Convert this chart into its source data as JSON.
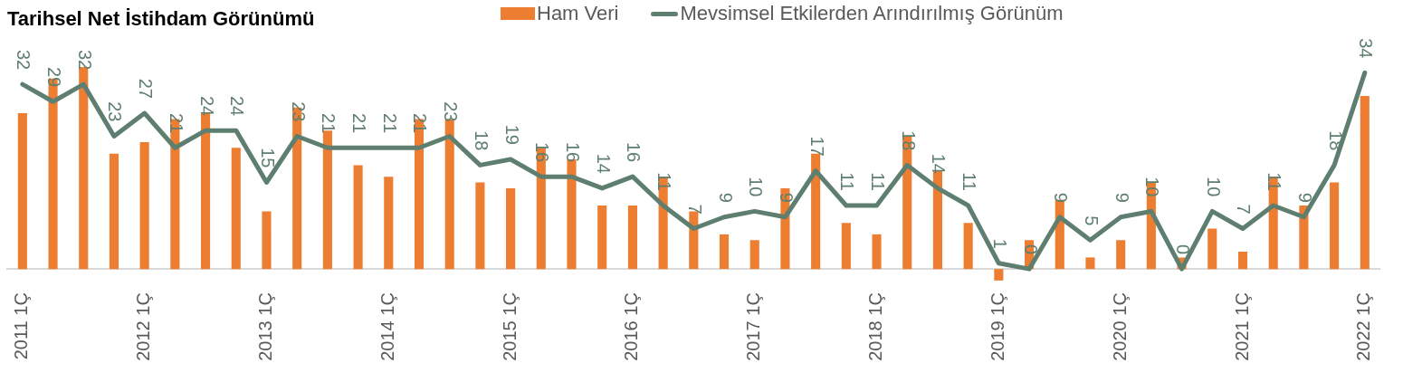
{
  "chart_data": {
    "type": "bar",
    "title": "Tarihsel Net İstihdam Görünümü",
    "categories": [
      "2011 1Ç",
      null,
      null,
      null,
      "2012 1Ç",
      null,
      null,
      null,
      "2013 1Ç",
      null,
      null,
      null,
      "2014 1Ç",
      null,
      null,
      null,
      "2015 1Ç",
      null,
      null,
      null,
      "2016 1Ç",
      null,
      null,
      null,
      "2017 1Ç",
      null,
      null,
      null,
      "2018 1Ç",
      null,
      null,
      null,
      "2019 1Ç",
      null,
      null,
      null,
      "2020 1Ç",
      null,
      null,
      null,
      "2021 1Ç",
      null,
      null,
      null,
      "2022 1Ç"
    ],
    "series": [
      {
        "name": "Ham Veri",
        "color": "#ed7d31",
        "values": [
          27,
          33,
          35,
          20,
          22,
          26,
          27,
          21,
          10,
          28,
          24,
          18,
          16,
          26,
          26,
          15,
          14,
          21,
          19,
          11,
          11,
          16,
          10,
          6,
          5,
          14,
          20,
          8,
          6,
          23,
          17,
          8,
          -2,
          5,
          12,
          2,
          5,
          15,
          2,
          7,
          3,
          16,
          11,
          15,
          30
        ]
      },
      {
        "name": "Mevsimsel Etkilerden Arındırılmış Görünüm",
        "type": "line",
        "color": "#5e7f6f",
        "data_labels": true,
        "values": [
          32,
          29,
          32,
          23,
          27,
          21,
          24,
          24,
          15,
          23,
          21,
          21,
          21,
          21,
          23,
          18,
          19,
          16,
          16,
          14,
          16,
          11,
          7,
          9,
          10,
          9,
          17,
          11,
          11,
          18,
          14,
          11,
          1,
          0,
          9,
          5,
          9,
          10,
          0,
          10,
          7,
          11,
          9,
          18,
          34
        ]
      }
    ],
    "tick_labels": "x",
    "grid": false,
    "legend": "top",
    "marker": "none",
    "line_style": "solid"
  }
}
